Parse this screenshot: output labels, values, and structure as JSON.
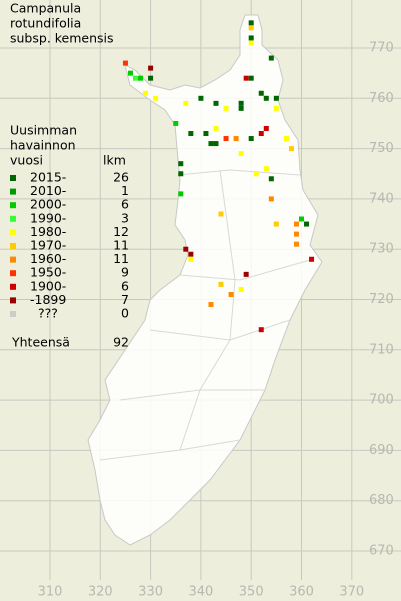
{
  "title": [
    "Campanula",
    "rotundifolia",
    "subsp. kemensis"
  ],
  "legend": {
    "heading": [
      "Uusimman",
      "havainnon"
    ],
    "col_period": "vuosi",
    "col_count": "lkm",
    "rows": [
      {
        "label": "2015-",
        "count": 26,
        "color": "#006600"
      },
      {
        "label": "2010-",
        "count": 1,
        "color": "#009900"
      },
      {
        "label": "2000-",
        "count": 6,
        "color": "#00cc00"
      },
      {
        "label": "1990-",
        "count": 3,
        "color": "#33ff33"
      },
      {
        "label": "1980-",
        "count": 12,
        "color": "#ffff00"
      },
      {
        "label": "1970-",
        "count": 11,
        "color": "#ffcc00"
      },
      {
        "label": "1960-",
        "count": 11,
        "color": "#ff8800"
      },
      {
        "label": "1950-",
        "count": 9,
        "color": "#ff3300"
      },
      {
        "label": "1900-",
        "count": 6,
        "color": "#cc0000"
      },
      {
        "label": "-1899",
        "count": 7,
        "color": "#990000"
      },
      {
        "label": "???",
        "count": 0,
        "color": "#cccccc"
      }
    ],
    "total_label": "Yhteensä",
    "total": 92
  },
  "x_ticks": [
    310,
    320,
    330,
    340,
    350,
    360,
    370
  ],
  "y_ticks": [
    670,
    680,
    690,
    700,
    710,
    720,
    730,
    740,
    750,
    760,
    770
  ],
  "observations": [
    {
      "x": 350,
      "y": 775,
      "period": 0
    },
    {
      "x": 350,
      "y": 774,
      "period": 5
    },
    {
      "x": 350,
      "y": 772,
      "period": 0
    },
    {
      "x": 350,
      "y": 771,
      "period": 4
    },
    {
      "x": 354,
      "y": 768,
      "period": 0
    },
    {
      "x": 325,
      "y": 767,
      "period": 7
    },
    {
      "x": 330,
      "y": 766,
      "period": 9
    },
    {
      "x": 326,
      "y": 765,
      "period": 2
    },
    {
      "x": 327,
      "y": 764,
      "period": 3
    },
    {
      "x": 328,
      "y": 764,
      "period": 2
    },
    {
      "x": 330,
      "y": 764,
      "period": 0
    },
    {
      "x": 349,
      "y": 764,
      "period": 8
    },
    {
      "x": 350,
      "y": 764,
      "period": 0
    },
    {
      "x": 352,
      "y": 761,
      "period": 0
    },
    {
      "x": 329,
      "y": 761,
      "period": 4
    },
    {
      "x": 331,
      "y": 760,
      "period": 4
    },
    {
      "x": 340,
      "y": 760,
      "period": 0
    },
    {
      "x": 343,
      "y": 759,
      "period": 0
    },
    {
      "x": 348,
      "y": 759,
      "period": 0
    },
    {
      "x": 353,
      "y": 760,
      "period": 0
    },
    {
      "x": 355,
      "y": 760,
      "period": 0
    },
    {
      "x": 355,
      "y": 758,
      "period": 4
    },
    {
      "x": 337,
      "y": 759,
      "period": 4
    },
    {
      "x": 345,
      "y": 758,
      "period": 4
    },
    {
      "x": 348,
      "y": 758,
      "period": 0
    },
    {
      "x": 335,
      "y": 755,
      "period": 2
    },
    {
      "x": 338,
      "y": 753,
      "period": 0
    },
    {
      "x": 341,
      "y": 753,
      "period": 0
    },
    {
      "x": 343,
      "y": 754,
      "period": 4
    },
    {
      "x": 345,
      "y": 752,
      "period": 7
    },
    {
      "x": 347,
      "y": 752,
      "period": 6
    },
    {
      "x": 350,
      "y": 752,
      "period": 0
    },
    {
      "x": 353,
      "y": 754,
      "period": 8
    },
    {
      "x": 352,
      "y": 753,
      "period": 8
    },
    {
      "x": 342,
      "y": 751,
      "period": 0
    },
    {
      "x": 343,
      "y": 751,
      "period": 0
    },
    {
      "x": 348,
      "y": 749,
      "period": 4
    },
    {
      "x": 357,
      "y": 752,
      "period": 4
    },
    {
      "x": 358,
      "y": 750,
      "period": 5
    },
    {
      "x": 336,
      "y": 747,
      "period": 0
    },
    {
      "x": 336,
      "y": 745,
      "period": 0
    },
    {
      "x": 351,
      "y": 745,
      "period": 4
    },
    {
      "x": 353,
      "y": 746,
      "period": 4
    },
    {
      "x": 354,
      "y": 744,
      "period": 0
    },
    {
      "x": 336,
      "y": 741,
      "period": 2
    },
    {
      "x": 354,
      "y": 740,
      "period": 6
    },
    {
      "x": 344,
      "y": 737,
      "period": 5
    },
    {
      "x": 355,
      "y": 735,
      "period": 5
    },
    {
      "x": 360,
      "y": 736,
      "period": 2
    },
    {
      "x": 361,
      "y": 735,
      "period": 0
    },
    {
      "x": 359,
      "y": 735,
      "period": 6
    },
    {
      "x": 359,
      "y": 733,
      "period": 6
    },
    {
      "x": 359,
      "y": 731,
      "period": 6
    },
    {
      "x": 362,
      "y": 728,
      "period": 8
    },
    {
      "x": 337,
      "y": 730,
      "period": 9
    },
    {
      "x": 338,
      "y": 729,
      "period": 9
    },
    {
      "x": 338,
      "y": 728,
      "period": 4
    },
    {
      "x": 349,
      "y": 725,
      "period": 9
    },
    {
      "x": 344,
      "y": 723,
      "period": 5
    },
    {
      "x": 346,
      "y": 721,
      "period": 6
    },
    {
      "x": 348,
      "y": 722,
      "period": 4
    },
    {
      "x": 342,
      "y": 719,
      "period": 6
    },
    {
      "x": 352,
      "y": 714,
      "period": 8
    }
  ]
}
